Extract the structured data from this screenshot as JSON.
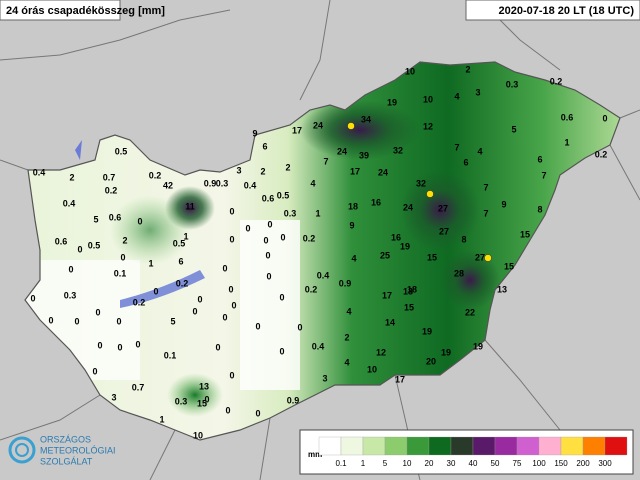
{
  "header": {
    "title": "24 órás csapadékösszeg [mm]",
    "date": "2020-07-18 20 LT (18 UTC)"
  },
  "logo": {
    "lines": [
      "ORSZÁGOS",
      "METEOROLÓGIAI",
      "SZOLGÁLAT"
    ]
  },
  "legend": {
    "unit": "mm",
    "labels": [
      0.1,
      1,
      5,
      10,
      20,
      30,
      40,
      50,
      75,
      100,
      150,
      200,
      300
    ]
  },
  "stations": [
    10,
    2,
    4,
    3,
    0.3,
    0.2,
    0.6,
    0,
    0.2,
    1,
    6,
    5,
    4,
    7,
    6,
    7,
    8,
    9,
    7,
    7,
    15,
    27,
    15,
    28,
    13,
    22,
    19,
    19,
    20,
    19,
    15,
    14,
    12,
    10,
    17,
    13,
    18,
    17,
    15,
    25,
    19,
    16,
    27,
    8,
    24,
    27,
    32,
    16,
    18,
    17,
    24,
    24,
    39,
    32,
    34,
    12,
    10,
    19,
    24,
    17,
    9,
    6,
    2,
    4,
    7,
    9,
    1,
    0.3,
    0.2,
    0.5,
    4,
    0.4,
    0.2,
    0.9,
    4,
    2,
    4,
    0.4,
    0,
    0,
    3,
    0.9,
    0,
    10,
    0,
    0,
    0,
    0,
    15,
    13,
    0.3,
    0.7,
    1,
    3,
    0,
    0.1,
    0,
    0,
    0,
    0,
    0,
    0,
    0,
    0,
    0,
    0,
    0,
    0,
    0,
    0,
    0,
    5,
    0.2,
    0.2,
    6,
    0.5,
    1,
    11,
    42,
    0.9,
    0.3,
    3,
    0.4,
    2,
    0.6,
    0,
    0,
    0.6,
    5,
    0.5,
    2,
    1,
    0.1,
    0.6,
    0.4,
    0.4,
    0.5,
    0.2,
    0.2,
    0.7,
    2,
    0,
    0,
    0.3,
    0,
    0,
    0,
    0,
    0,
    0,
    0,
    0,
    0,
    0
  ]
}
